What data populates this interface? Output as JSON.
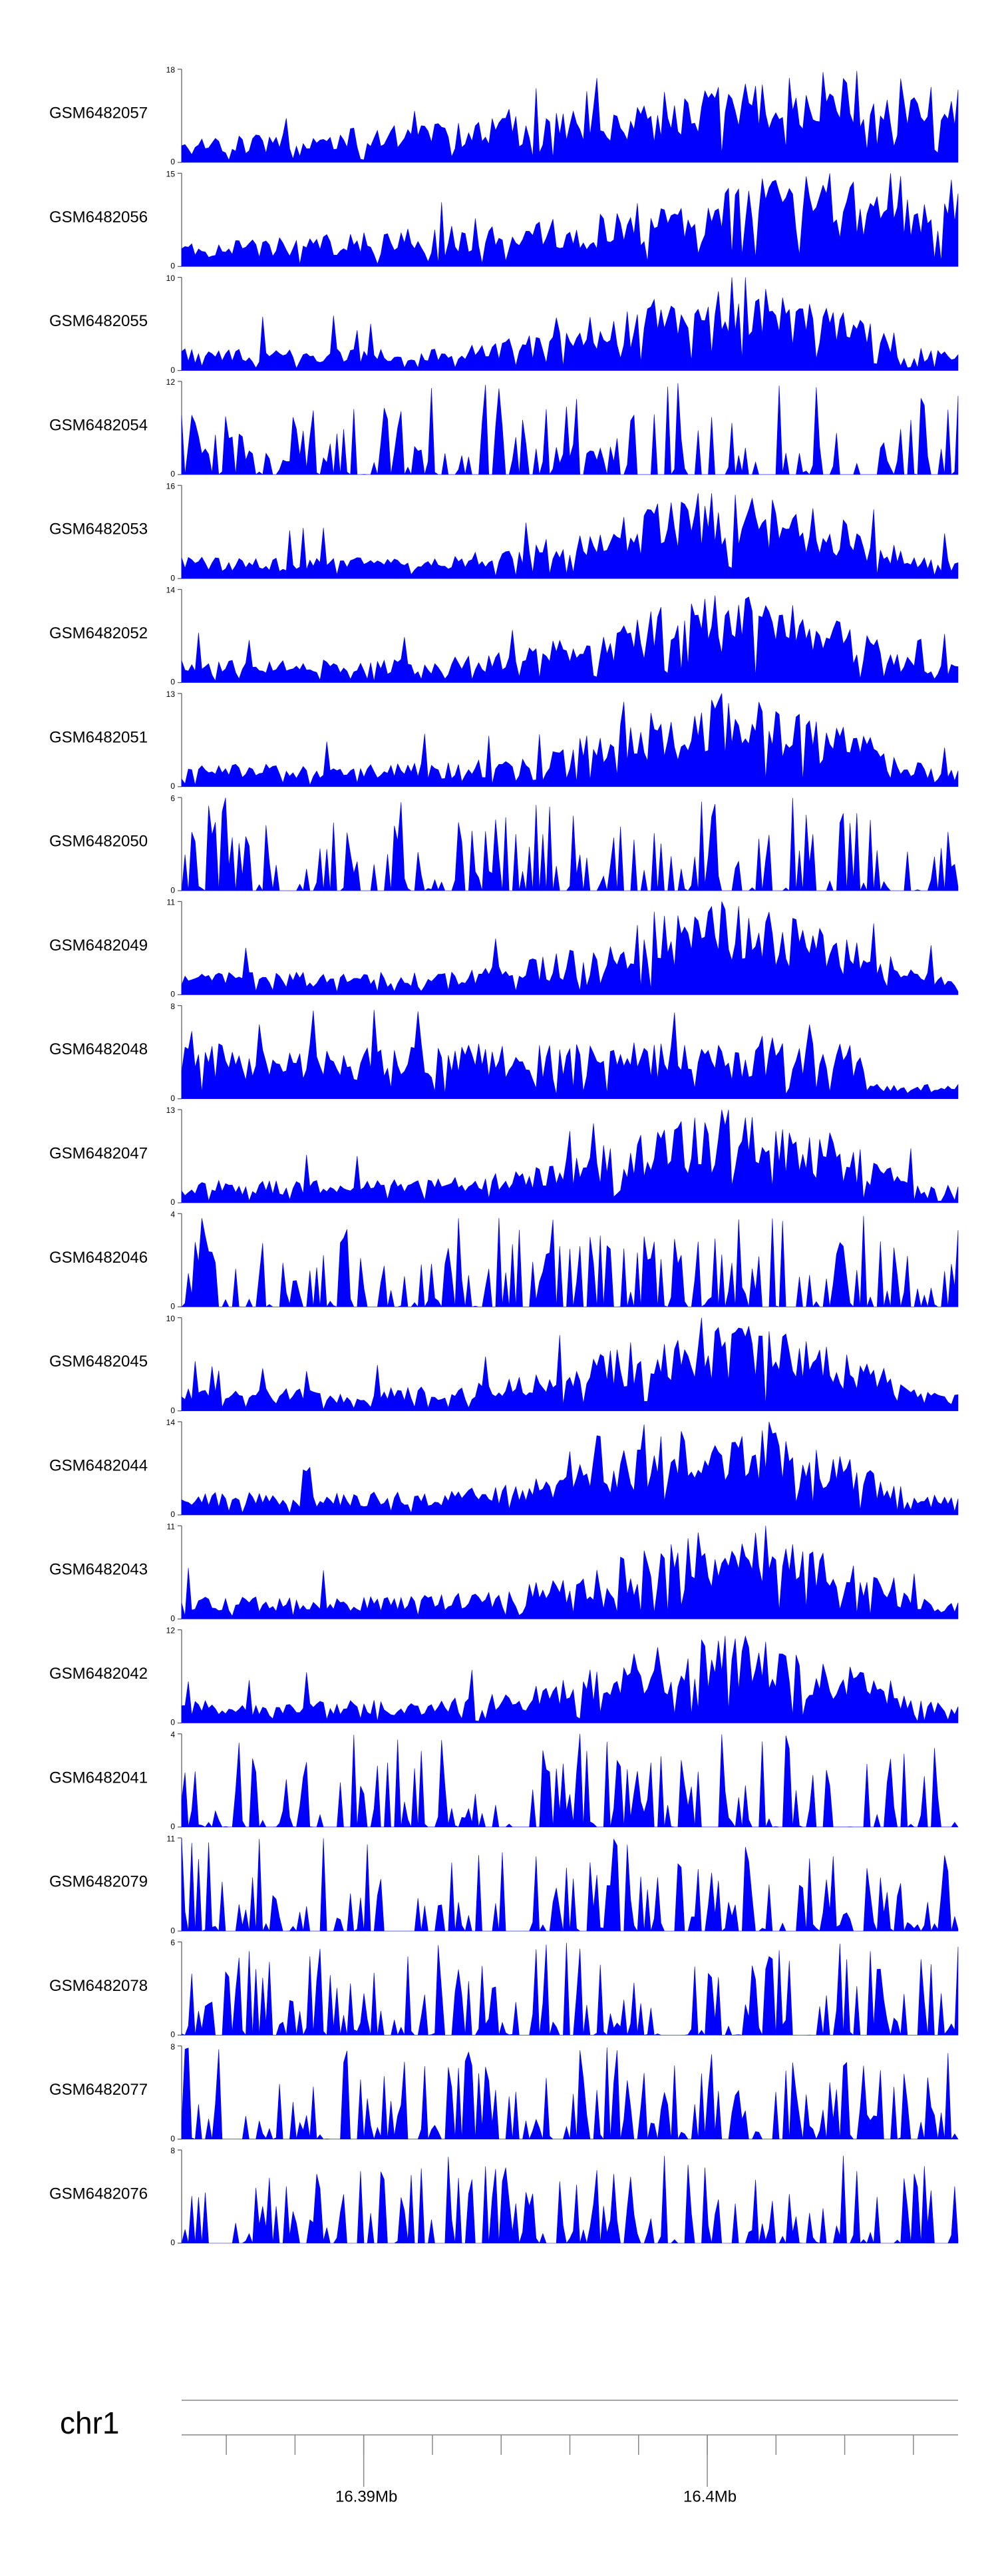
{
  "chart_data": {
    "type": "area",
    "color": "#0000ff",
    "tracks": [
      {
        "name": "GSM6482057",
        "ymax": 18,
        "profile": "rising"
      },
      {
        "name": "GSM6482056",
        "ymax": 15,
        "profile": "rising"
      },
      {
        "name": "GSM6482055",
        "ymax": 10,
        "profile": "mid-peak"
      },
      {
        "name": "GSM6482054",
        "ymax": 12,
        "profile": "sparse"
      },
      {
        "name": "GSM6482053",
        "ymax": 16,
        "profile": "mid-peak"
      },
      {
        "name": "GSM6482052",
        "ymax": 14,
        "profile": "mid-peak"
      },
      {
        "name": "GSM6482051",
        "ymax": 13,
        "profile": "mid-peak"
      },
      {
        "name": "GSM6482050",
        "ymax": 6,
        "profile": "sparse"
      },
      {
        "name": "GSM6482049",
        "ymax": 11,
        "profile": "mid-peak"
      },
      {
        "name": "GSM6482048",
        "ymax": 8,
        "profile": "flat"
      },
      {
        "name": "GSM6482047",
        "ymax": 13,
        "profile": "mid-peak"
      },
      {
        "name": "GSM6482046",
        "ymax": 4,
        "profile": "sparse"
      },
      {
        "name": "GSM6482045",
        "ymax": 10,
        "profile": "mid-peak"
      },
      {
        "name": "GSM6482044",
        "ymax": 14,
        "profile": "mid-peak"
      },
      {
        "name": "GSM6482043",
        "ymax": 11,
        "profile": "mid-peak"
      },
      {
        "name": "GSM6482042",
        "ymax": 12,
        "profile": "mid-peak"
      },
      {
        "name": "GSM6482041",
        "ymax": 4,
        "profile": "sparse"
      },
      {
        "name": "GSM6482079",
        "ymax": 11,
        "profile": "sparse"
      },
      {
        "name": "GSM6482078",
        "ymax": 6,
        "profile": "sparse"
      },
      {
        "name": "GSM6482077",
        "ymax": 8,
        "profile": "sparse"
      },
      {
        "name": "GSM6482076",
        "ymax": 8,
        "profile": "sparse"
      }
    ],
    "ymin_label": "0",
    "axis": {
      "chromosome": "chr1",
      "range_mb": [
        16.3847,
        16.4073
      ],
      "labels": [
        {
          "text": "16.39Mb",
          "value": 16.39
        },
        {
          "text": "16.4Mb",
          "value": 16.4
        }
      ],
      "minor_tick_step_mb": 0.002
    }
  }
}
